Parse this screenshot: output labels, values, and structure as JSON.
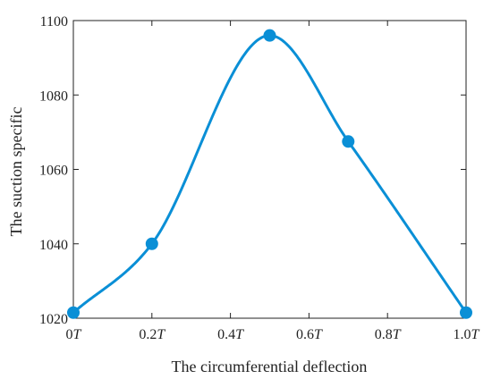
{
  "chart_data": {
    "type": "line",
    "xlabel": "The circumferential deflection",
    "ylabel": "The suction specific",
    "x": [
      0,
      0.2,
      0.5,
      0.7,
      1.0
    ],
    "x_tick_values": [
      0,
      0.2,
      0.4,
      0.6,
      0.8,
      1.0
    ],
    "x_tick_labels": [
      {
        "num": "0",
        "unit": "T"
      },
      {
        "num": "0.2",
        "unit": "T"
      },
      {
        "num": "0.4",
        "unit": "T"
      },
      {
        "num": "0.6",
        "unit": "T"
      },
      {
        "num": "0.8",
        "unit": "T"
      },
      {
        "num": "1.0",
        "unit": "T"
      }
    ],
    "y_ticks": [
      1020,
      1040,
      1060,
      1080,
      1100
    ],
    "xlim": [
      0,
      1.0
    ],
    "ylim": [
      1020,
      1100
    ],
    "grid": false,
    "legend": "none",
    "series": [
      {
        "x": [
          0,
          0.2,
          0.5,
          0.7,
          1.0
        ],
        "values": [
          1021.5,
          1040,
          1096,
          1067.5,
          1021.5
        ],
        "color": "#0a8fd6",
        "smooth": true,
        "markers": true
      }
    ]
  }
}
